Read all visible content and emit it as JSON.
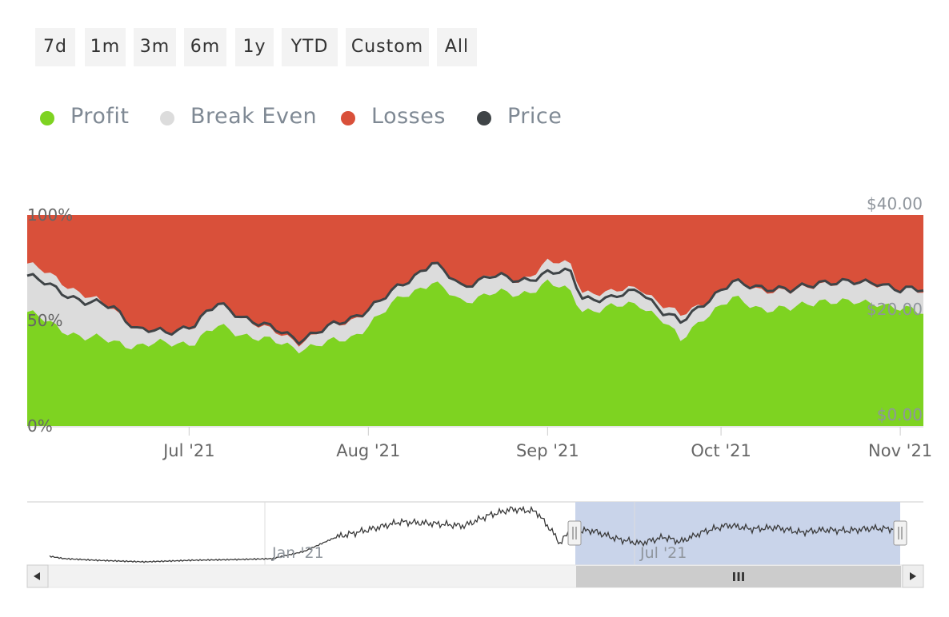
{
  "range_buttons": [
    "7d",
    "1m",
    "3m",
    "6m",
    "1y",
    "YTD",
    "Custom",
    "All"
  ],
  "legend": [
    {
      "label": "Profit",
      "color": "#7ed321",
      "icon": "profit-dot-icon"
    },
    {
      "label": "Break Even",
      "color": "#dcdcdc",
      "icon": "break-even-dot-icon"
    },
    {
      "label": "Losses",
      "color": "#d9503a",
      "icon": "losses-dot-icon"
    },
    {
      "label": "Price",
      "color": "#3f4447",
      "icon": "price-dot-icon"
    }
  ],
  "colors": {
    "profit": "#7ed321",
    "break_even": "#dcdcdc",
    "losses": "#d9503a",
    "price": "#3f4447",
    "navigator_mask": "#c9d4ea",
    "axis_text": "#8f959c"
  },
  "chart_data": {
    "type": "area",
    "stacked": true,
    "x_start": "2021-06-03",
    "x_end": "2021-11-05",
    "x_ticks": [
      {
        "date": "2021-07-01",
        "label": "Jul '21"
      },
      {
        "date": "2021-08-01",
        "label": "Aug '21"
      },
      {
        "date": "2021-09-01",
        "label": "Sep '21"
      },
      {
        "date": "2021-10-01",
        "label": "Oct '21"
      },
      {
        "date": "2021-11-01",
        "label": "Nov '21"
      }
    ],
    "y_left": {
      "range": [
        0,
        100
      ],
      "ticks": [
        {
          "value": 0,
          "label": "0%"
        },
        {
          "value": 50,
          "label": "50%"
        },
        {
          "value": 100,
          "label": "100%"
        }
      ]
    },
    "y_right": {
      "range": [
        0,
        40
      ],
      "ticks": [
        {
          "value": 0,
          "label": "$0.00"
        },
        {
          "value": 20,
          "label": "$20.00"
        },
        {
          "value": 40,
          "label": "$40.00"
        }
      ]
    },
    "series_anchors": [
      {
        "date": "2021-06-03",
        "profit": 54,
        "break_even": 77,
        "price": 28.5
      },
      {
        "date": "2021-06-08",
        "profit": 47,
        "break_even": 70,
        "price": 26.0
      },
      {
        "date": "2021-06-13",
        "profit": 42,
        "break_even": 62,
        "price": 23.5
      },
      {
        "date": "2021-06-18",
        "profit": 40,
        "break_even": 55,
        "price": 22.5
      },
      {
        "date": "2021-06-22",
        "profit": 38,
        "break_even": 46,
        "price": 18.5
      },
      {
        "date": "2021-06-27",
        "profit": 39,
        "break_even": 44,
        "price": 17.5
      },
      {
        "date": "2021-07-02",
        "profit": 40,
        "break_even": 48,
        "price": 19.5
      },
      {
        "date": "2021-07-06",
        "profit": 47,
        "break_even": 58,
        "price": 23.0
      },
      {
        "date": "2021-07-10",
        "profit": 44,
        "break_even": 52,
        "price": 21.0
      },
      {
        "date": "2021-07-15",
        "profit": 40,
        "break_even": 45,
        "price": 18.5
      },
      {
        "date": "2021-07-20",
        "profit": 37,
        "break_even": 40,
        "price": 16.5
      },
      {
        "date": "2021-07-25",
        "profit": 39,
        "break_even": 46,
        "price": 18.5
      },
      {
        "date": "2021-07-29",
        "profit": 42,
        "break_even": 50,
        "price": 20.5
      },
      {
        "date": "2021-08-03",
        "profit": 52,
        "break_even": 59,
        "price": 23.5
      },
      {
        "date": "2021-08-07",
        "profit": 62,
        "break_even": 68,
        "price": 27.0
      },
      {
        "date": "2021-08-12",
        "profit": 68,
        "break_even": 78,
        "price": 31.0
      },
      {
        "date": "2021-08-17",
        "profit": 59,
        "break_even": 66,
        "price": 26.5
      },
      {
        "date": "2021-08-22",
        "profit": 63,
        "break_even": 72,
        "price": 28.5
      },
      {
        "date": "2021-08-27",
        "profit": 62,
        "break_even": 68,
        "price": 27.5
      },
      {
        "date": "2021-09-01",
        "profit": 68,
        "break_even": 78,
        "price": 29.0
      },
      {
        "date": "2021-09-05",
        "profit": 63,
        "break_even": 76,
        "price": 29.0
      },
      {
        "date": "2021-09-07",
        "profit": 55,
        "break_even": 64,
        "price": 24.5
      },
      {
        "date": "2021-09-12",
        "profit": 56,
        "break_even": 63,
        "price": 24.0
      },
      {
        "date": "2021-09-17",
        "profit": 58,
        "break_even": 66,
        "price": 26.0
      },
      {
        "date": "2021-09-21",
        "profit": 50,
        "break_even": 57,
        "price": 21.5
      },
      {
        "date": "2021-09-24",
        "profit": 40,
        "break_even": 52,
        "price": 19.5
      },
      {
        "date": "2021-09-28",
        "profit": 52,
        "break_even": 59,
        "price": 23.5
      },
      {
        "date": "2021-10-03",
        "profit": 60,
        "break_even": 68,
        "price": 27.0
      },
      {
        "date": "2021-10-08",
        "profit": 56,
        "break_even": 65,
        "price": 26.5
      },
      {
        "date": "2021-10-13",
        "profit": 55,
        "break_even": 63,
        "price": 25.5
      },
      {
        "date": "2021-10-18",
        "profit": 60,
        "break_even": 68,
        "price": 27.5
      },
      {
        "date": "2021-10-23",
        "profit": 58,
        "break_even": 67,
        "price": 27.0
      },
      {
        "date": "2021-10-28",
        "profit": 59,
        "break_even": 68,
        "price": 27.5
      },
      {
        "date": "2021-11-01",
        "profit": 55,
        "break_even": 64,
        "price": 25.5
      },
      {
        "date": "2021-11-05",
        "profit": 54,
        "break_even": 64,
        "price": 26.0
      }
    ]
  },
  "navigator": {
    "x_ticks": [
      "Jan '21",
      "Jul '21"
    ],
    "scrollbar_left_icon": "arrow-left-icon",
    "scrollbar_right_icon": "arrow-right-icon",
    "scrollbar_grip_icon": "grip-icon",
    "grip_label": "III"
  }
}
